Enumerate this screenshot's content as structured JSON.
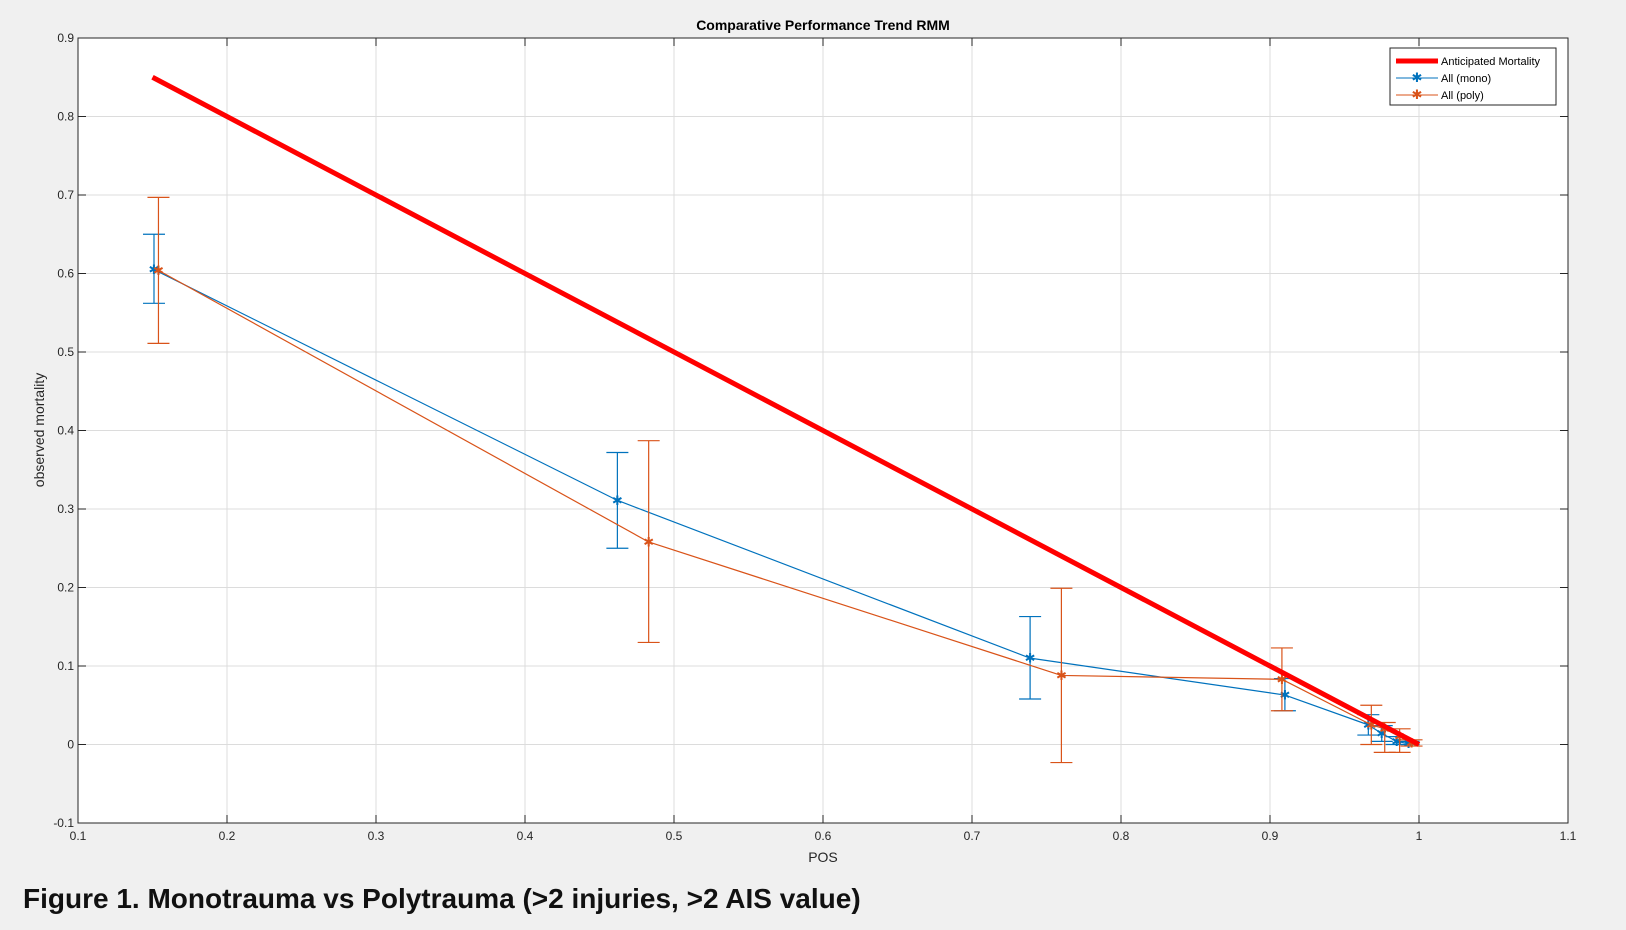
{
  "caption": "Figure 1. Monotrauma vs Polytrauma (>2 injuries, >2 AIS value)",
  "chart_data": {
    "type": "line",
    "title": "Comparative Performance Trend RMM",
    "xlabel": "POS",
    "ylabel": "observed mortality",
    "xlim": [
      0.1,
      1.1
    ],
    "ylim": [
      -0.1,
      0.9
    ],
    "xticks": [
      0.1,
      0.2,
      0.3,
      0.4,
      0.5,
      0.6,
      0.7,
      0.8,
      0.9,
      1,
      1.1
    ],
    "yticks": [
      -0.1,
      0,
      0.1,
      0.2,
      0.3,
      0.4,
      0.5,
      0.6,
      0.7,
      0.8,
      0.9
    ],
    "xtick_labels": [
      "0.1",
      "0.2",
      "0.3",
      "0.4",
      "0.5",
      "0.6",
      "0.7",
      "0.8",
      "0.9",
      "1",
      "1.1"
    ],
    "ytick_labels": [
      "-0.1",
      "0",
      "0.1",
      "0.2",
      "0.3",
      "0.4",
      "0.5",
      "0.6",
      "0.7",
      "0.8",
      "0.9"
    ],
    "grid": true,
    "legend_position": "top-right",
    "series": [
      {
        "name": "Anticipated Mortality",
        "color": "#ff0000",
        "marker": "none",
        "style": "thick",
        "x": [
          0.15,
          1.0
        ],
        "y": [
          0.85,
          0.0
        ]
      },
      {
        "name": "All (mono)",
        "color": "#0072bd",
        "marker": "asterisk",
        "x": [
          0.151,
          0.462,
          0.739,
          0.91,
          0.966,
          0.975,
          0.985,
          0.993
        ],
        "y": [
          0.605,
          0.311,
          0.11,
          0.063,
          0.025,
          0.014,
          0.004,
          0.001
        ],
        "err_low": [
          0.562,
          0.25,
          0.058,
          0.043,
          0.012,
          0.004,
          0.0,
          0.0
        ],
        "err_high": [
          0.65,
          0.372,
          0.163,
          0.084,
          0.038,
          0.024,
          0.01,
          0.004
        ]
      },
      {
        "name": "All (poly)",
        "color": "#d95319",
        "marker": "asterisk",
        "x": [
          0.154,
          0.483,
          0.76,
          0.908,
          0.968,
          0.977,
          0.987,
          0.995
        ],
        "y": [
          0.604,
          0.258,
          0.088,
          0.083,
          0.025,
          0.02,
          0.01,
          0.002
        ],
        "err_low": [
          0.511,
          0.13,
          -0.023,
          0.043,
          0.0,
          -0.01,
          -0.01,
          -0.002
        ],
        "err_high": [
          0.697,
          0.387,
          0.199,
          0.123,
          0.05,
          0.028,
          0.02,
          0.006
        ]
      }
    ]
  }
}
